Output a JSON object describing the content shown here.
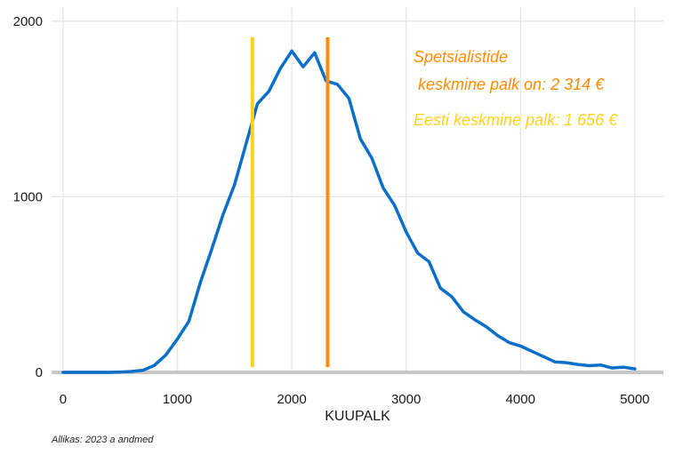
{
  "chart_data": {
    "type": "line",
    "xlabel": "KUUPALK",
    "ylabel": "",
    "xlim": [
      -100,
      5250
    ],
    "ylim": [
      -5,
      2080
    ],
    "x_ticks": [
      0,
      1000,
      2000,
      3000,
      4000,
      5000
    ],
    "x_tick_labels": [
      "0",
      "1000",
      "2000",
      "3000",
      "4000",
      "5000"
    ],
    "y_ticks": [
      0,
      1000,
      2000
    ],
    "y_tick_labels": [
      "0",
      "1000",
      "2000"
    ],
    "grid": true,
    "series": [
      {
        "name": "Spetsialistid",
        "color": "#0a6fc9",
        "x": [
          0,
          100,
          200,
          300,
          400,
          500,
          600,
          700,
          800,
          900,
          1000,
          1100,
          1200,
          1300,
          1400,
          1500,
          1600,
          1700,
          1800,
          1900,
          2000,
          2100,
          2200,
          2300,
          2400,
          2500,
          2600,
          2700,
          2800,
          2900,
          3000,
          3100,
          3200,
          3300,
          3400,
          3500,
          3600,
          3700,
          3800,
          3900,
          4000,
          4100,
          4200,
          4300,
          4400,
          4500,
          4600,
          4700,
          4800,
          4900,
          5000
        ],
        "y": [
          0,
          0,
          0,
          0,
          0,
          2,
          5,
          12,
          40,
          100,
          190,
          290,
          510,
          700,
          900,
          1070,
          1300,
          1530,
          1600,
          1730,
          1830,
          1740,
          1820,
          1660,
          1640,
          1560,
          1330,
          1220,
          1050,
          950,
          800,
          680,
          630,
          480,
          430,
          345,
          300,
          260,
          210,
          170,
          150,
          120,
          90,
          60,
          55,
          45,
          38,
          42,
          25,
          30,
          20
        ]
      }
    ],
    "reference_lines": [
      {
        "name": "Eesti keskmine palk",
        "x": 1656,
        "color": "#ffd21a"
      },
      {
        "name": "Spetsialistide keskmine palk",
        "x": 2314,
        "color": "#ff8c00"
      }
    ],
    "annotations": [
      {
        "text": "Spetsialistide",
        "color": "#ff8c00"
      },
      {
        "text": " keskmine palk on: 2 314 €",
        "color": "#ff8c00"
      },
      {
        "text": "Eesti keskmine palk: 1 656 €",
        "color": "#ffd21a"
      }
    ]
  },
  "footer": {
    "source": "Allikas: 2023 a andmed"
  }
}
